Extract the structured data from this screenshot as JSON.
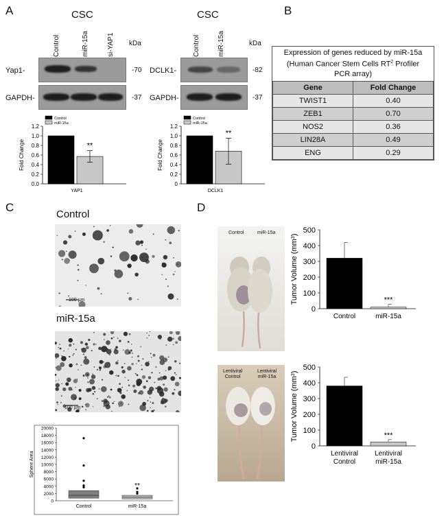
{
  "panelA": {
    "letter": "A",
    "left": {
      "title": "CSC",
      "lanes": [
        "Control",
        "miR-15a",
        "si-YAP1"
      ],
      "kda": "kDa",
      "blot1_label": "Yap1-",
      "blot1_kda": "-70",
      "blot2_label": "GAPDH-",
      "blot2_kda": "-37"
    },
    "right": {
      "title": "CSC",
      "lanes": [
        "Control",
        "miR-15a"
      ],
      "kda": "kDa",
      "blot1_label": "DCLK1-",
      "blot1_kda": "-82",
      "blot2_label": "GAPDH-",
      "blot2_kda": "-37"
    }
  },
  "panelB": {
    "letter": "B",
    "caption_line1": "Expression of genes reduced by miR-15a",
    "caption_line2_a": "(Human Cancer Stem Cells RT",
    "caption_sup": "2",
    "caption_line2_b": " Profiler",
    "caption_line3": "PCR array)",
    "col_gene": "Gene",
    "col_fold": "Fold Change",
    "rows": [
      {
        "gene": "TWIST1",
        "fold": "0.40"
      },
      {
        "gene": "ZEB1",
        "fold": "0.70"
      },
      {
        "gene": "NOS2",
        "fold": "0.36"
      },
      {
        "gene": "LIN28A",
        "fold": "0.49"
      },
      {
        "gene": "ENG",
        "fold": "0.29"
      }
    ]
  },
  "panelC": {
    "letter": "C",
    "label_control": "Control",
    "label_mir": "miR-15a",
    "scale_bar": "100 µm"
  },
  "panelD": {
    "letter": "D",
    "photo1_left": "Control",
    "photo1_right": "miR-15a",
    "photo2_left_1": "Lentiviral",
    "photo2_left_2": "Control",
    "photo2_right_1": "Lentiviral",
    "photo2_right_2": "miR-15a"
  },
  "chart_data": [
    {
      "type": "bar",
      "id": "yap1",
      "legend": [
        "Control",
        "miR-15a"
      ],
      "categories": [
        "Control",
        "miR-15a"
      ],
      "values": [
        1.0,
        0.57
      ],
      "errors": [
        0,
        0.12
      ],
      "xlabel": "YAP1",
      "ylabel": "Fold Change",
      "ylim": [
        0,
        1.2
      ],
      "yticks": [
        "0.0",
        "0.2",
        "0.4",
        "0.6",
        "0.8",
        "1.0",
        "1.2"
      ],
      "annotation": "**",
      "colors": [
        "#000000",
        "#c8c8c8"
      ]
    },
    {
      "type": "bar",
      "id": "dclk1",
      "legend": [
        "Control",
        "miR-15a"
      ],
      "categories": [
        "Control",
        "miR-15a"
      ],
      "values": [
        1.0,
        0.68
      ],
      "errors": [
        0,
        0.27
      ],
      "xlabel": "DCLK1",
      "ylabel": "Fold Change",
      "ylim": [
        0,
        1.2
      ],
      "yticks": [
        "0",
        "0.2",
        "0.4",
        "0.6",
        "0.8",
        "1.0",
        "1.2"
      ],
      "annotation": "**",
      "colors": [
        "#000000",
        "#c8c8c8"
      ]
    },
    {
      "type": "box",
      "id": "sphere",
      "categories": [
        "Control",
        "miR-15a"
      ],
      "ylabel": "Sphere Area",
      "ylim": [
        0,
        20000
      ],
      "yticks": [
        "0",
        "2000",
        "4000",
        "6000",
        "8000",
        "10000",
        "12000",
        "14000",
        "16000",
        "18000",
        "20000"
      ],
      "boxes": [
        {
          "q1": 700,
          "median": 1500,
          "q3": 2800,
          "outliers": [
            3700,
            4200,
            5500,
            9700,
            17200
          ]
        },
        {
          "q1": 500,
          "median": 950,
          "q3": 1500,
          "outliers": [
            2000,
            2400,
            3400
          ]
        }
      ],
      "annotation": "**",
      "colors": [
        "#7f7f7f",
        "#b8b8b8"
      ]
    },
    {
      "type": "bar",
      "id": "tumor1",
      "categories": [
        "Control",
        "miR-15a"
      ],
      "values": [
        320,
        10
      ],
      "errors": [
        100,
        18
      ],
      "ylabel": "Tumor Volume (mm3)",
      "ylim": [
        0,
        500
      ],
      "yticks": [
        "0",
        "100",
        "200",
        "300",
        "400",
        "500"
      ],
      "annotation": "***",
      "colors": [
        "#000000",
        "#c8c8c8"
      ]
    },
    {
      "type": "bar",
      "id": "tumor2",
      "categories": [
        "Lentiviral Control",
        "Lentiviral miR-15a"
      ],
      "values": [
        380,
        25
      ],
      "errors": [
        55,
        15
      ],
      "ylabel": "Tumor Volume (mm3)",
      "ylim": [
        0,
        500
      ],
      "yticks": [
        "0",
        "100",
        "200",
        "300",
        "400",
        "500"
      ],
      "annotation": "***",
      "colors": [
        "#000000",
        "#c8c8c8"
      ]
    }
  ]
}
